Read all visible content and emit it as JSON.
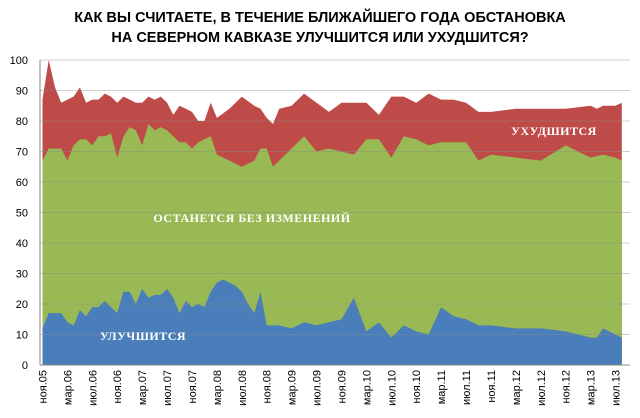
{
  "chart_data": {
    "type": "area",
    "stacked": true,
    "title_lines": [
      "КАК ВЫ СЧИТАЕТЕ, В ТЕЧЕНИЕ БЛИЖАЙШЕГО ГОДА ОБСТАНОВКА",
      "НА СЕВЕРНОМ КАВКАЗЕ УЛУЧШИТСЯ ИЛИ УХУДШИТСЯ?"
    ],
    "ylim": [
      0,
      100
    ],
    "y_ticks": [
      0,
      10,
      20,
      30,
      40,
      50,
      60,
      70,
      80,
      90,
      100
    ],
    "grid": "horizontal",
    "x_tick_labels": [
      {
        "label": "ноя.05",
        "t": 0
      },
      {
        "label": "мар.06",
        "t": 4
      },
      {
        "label": "июл.06",
        "t": 8
      },
      {
        "label": "ноя.06",
        "t": 12
      },
      {
        "label": "мар.07",
        "t": 16
      },
      {
        "label": "июл.07",
        "t": 20
      },
      {
        "label": "ноя.07",
        "t": 24
      },
      {
        "label": "мар.08",
        "t": 28
      },
      {
        "label": "июл.08",
        "t": 32
      },
      {
        "label": "ноя.08",
        "t": 36
      },
      {
        "label": "мар.09",
        "t": 40
      },
      {
        "label": "июл.09",
        "t": 44
      },
      {
        "label": "ноя.09",
        "t": 48
      },
      {
        "label": "мар.10",
        "t": 52
      },
      {
        "label": "июл.10",
        "t": 56
      },
      {
        "label": "ноя.10",
        "t": 60
      },
      {
        "label": "мар.11",
        "t": 64
      },
      {
        "label": "июл.11",
        "t": 68
      },
      {
        "label": "ноя.11",
        "t": 72
      },
      {
        "label": "мар.12",
        "t": 76
      },
      {
        "label": "июл.12",
        "t": 80
      },
      {
        "label": "ноя.12",
        "t": 84
      },
      {
        "label": "мар.13",
        "t": 88
      },
      {
        "label": "июл.13",
        "t": 92
      }
    ],
    "x_range": [
      0,
      94
    ],
    "series": [
      {
        "name": "УЛУЧШИТСЯ",
        "color": "#4a7ebb",
        "points": [
          [
            0,
            12
          ],
          [
            1,
            17
          ],
          [
            2,
            17
          ],
          [
            3,
            17
          ],
          [
            4,
            14
          ],
          [
            5,
            13
          ],
          [
            6,
            18
          ],
          [
            7,
            16
          ],
          [
            8,
            19
          ],
          [
            9,
            19
          ],
          [
            10,
            21
          ],
          [
            11,
            19
          ],
          [
            12,
            17
          ],
          [
            13,
            24
          ],
          [
            14,
            24
          ],
          [
            15,
            20
          ],
          [
            16,
            25
          ],
          [
            17,
            22
          ],
          [
            18,
            23
          ],
          [
            19,
            23
          ],
          [
            20,
            25
          ],
          [
            21,
            22
          ],
          [
            22,
            17
          ],
          [
            23,
            21
          ],
          [
            24,
            19
          ],
          [
            25,
            20
          ],
          [
            26,
            19
          ],
          [
            27,
            24
          ],
          [
            28,
            27
          ],
          [
            29,
            28
          ],
          [
            30,
            27
          ],
          [
            31,
            26
          ],
          [
            32,
            24
          ],
          [
            33,
            20
          ],
          [
            34,
            17
          ],
          [
            35,
            24
          ],
          [
            36,
            13
          ],
          [
            38,
            13
          ],
          [
            40,
            12
          ],
          [
            42,
            14
          ],
          [
            44,
            13
          ],
          [
            46,
            14
          ],
          [
            48,
            15
          ],
          [
            50,
            22
          ],
          [
            52,
            11
          ],
          [
            54,
            14
          ],
          [
            56,
            9
          ],
          [
            58,
            13
          ],
          [
            60,
            11
          ],
          [
            62,
            10
          ],
          [
            64,
            19
          ],
          [
            66,
            16
          ],
          [
            68,
            15
          ],
          [
            70,
            13
          ],
          [
            72,
            13
          ],
          [
            76,
            12
          ],
          [
            80,
            12
          ],
          [
            84,
            11
          ],
          [
            88,
            9
          ],
          [
            89,
            9
          ],
          [
            90,
            12
          ],
          [
            92,
            10
          ],
          [
            93,
            9
          ]
        ]
      },
      {
        "name": "ОСТАНЕТСЯ БЕЗ ИЗМЕНЕНИЙ",
        "color": "#98b954",
        "points": [
          [
            0,
            67
          ],
          [
            1,
            71
          ],
          [
            2,
            71
          ],
          [
            3,
            71
          ],
          [
            4,
            67
          ],
          [
            5,
            72
          ],
          [
            6,
            74
          ],
          [
            7,
            74
          ],
          [
            8,
            72
          ],
          [
            9,
            75
          ],
          [
            10,
            75
          ],
          [
            11,
            76
          ],
          [
            12,
            68
          ],
          [
            13,
            75
          ],
          [
            14,
            78
          ],
          [
            15,
            77
          ],
          [
            16,
            72
          ],
          [
            17,
            79
          ],
          [
            18,
            77
          ],
          [
            19,
            78
          ],
          [
            20,
            77
          ],
          [
            21,
            75
          ],
          [
            22,
            73
          ],
          [
            23,
            73
          ],
          [
            24,
            71
          ],
          [
            25,
            73
          ],
          [
            26,
            74
          ],
          [
            27,
            75
          ],
          [
            28,
            69
          ],
          [
            30,
            67
          ],
          [
            32,
            65
          ],
          [
            34,
            67
          ],
          [
            35,
            71
          ],
          [
            36,
            71
          ],
          [
            37,
            65
          ],
          [
            38,
            67
          ],
          [
            40,
            71
          ],
          [
            42,
            75
          ],
          [
            44,
            70
          ],
          [
            46,
            71
          ],
          [
            48,
            70
          ],
          [
            50,
            69
          ],
          [
            52,
            74
          ],
          [
            54,
            74
          ],
          [
            56,
            68
          ],
          [
            58,
            75
          ],
          [
            60,
            74
          ],
          [
            62,
            72
          ],
          [
            64,
            73
          ],
          [
            66,
            73
          ],
          [
            68,
            73
          ],
          [
            70,
            67
          ],
          [
            72,
            69
          ],
          [
            76,
            68
          ],
          [
            80,
            67
          ],
          [
            84,
            72
          ],
          [
            88,
            68
          ],
          [
            90,
            69
          ],
          [
            92,
            68
          ],
          [
            93,
            67
          ]
        ]
      },
      {
        "name": "УХУДШИТСЯ",
        "color": "#be4b48",
        "points": [
          [
            0,
            87
          ],
          [
            1,
            100
          ],
          [
            2,
            91
          ],
          [
            3,
            86
          ],
          [
            4,
            87
          ],
          [
            5,
            88
          ],
          [
            6,
            91
          ],
          [
            7,
            86
          ],
          [
            8,
            87
          ],
          [
            9,
            87
          ],
          [
            10,
            89
          ],
          [
            11,
            88
          ],
          [
            12,
            86
          ],
          [
            13,
            88
          ],
          [
            14,
            87
          ],
          [
            15,
            86
          ],
          [
            16,
            86
          ],
          [
            17,
            88
          ],
          [
            18,
            87
          ],
          [
            19,
            88
          ],
          [
            20,
            86
          ],
          [
            21,
            82
          ],
          [
            22,
            85
          ],
          [
            23,
            84
          ],
          [
            24,
            83
          ],
          [
            25,
            80
          ],
          [
            26,
            80
          ],
          [
            27,
            86
          ],
          [
            28,
            81
          ],
          [
            30,
            84
          ],
          [
            32,
            88
          ],
          [
            34,
            85
          ],
          [
            35,
            84
          ],
          [
            36,
            81
          ],
          [
            37,
            79
          ],
          [
            38,
            84
          ],
          [
            40,
            85
          ],
          [
            42,
            89
          ],
          [
            44,
            86
          ],
          [
            46,
            83
          ],
          [
            48,
            86
          ],
          [
            50,
            86
          ],
          [
            52,
            86
          ],
          [
            54,
            82
          ],
          [
            56,
            88
          ],
          [
            58,
            88
          ],
          [
            60,
            86
          ],
          [
            62,
            89
          ],
          [
            64,
            87
          ],
          [
            66,
            87
          ],
          [
            68,
            86
          ],
          [
            70,
            83
          ],
          [
            72,
            83
          ],
          [
            76,
            84
          ],
          [
            80,
            84
          ],
          [
            84,
            84
          ],
          [
            88,
            85
          ],
          [
            89,
            84
          ],
          [
            90,
            85
          ],
          [
            92,
            85
          ],
          [
            93,
            86
          ]
        ]
      }
    ]
  }
}
